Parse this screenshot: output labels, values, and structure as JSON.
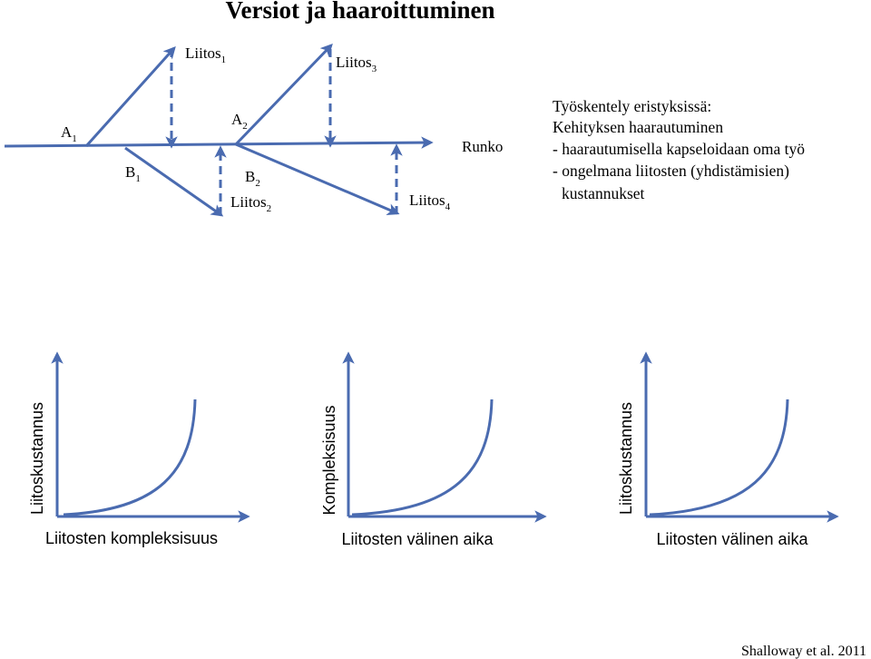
{
  "title": "Versiot ja haaroittuminen",
  "branch_diagram": {
    "a1": {
      "main": "A",
      "sub": "1"
    },
    "a2": {
      "main": "A",
      "sub": "2"
    },
    "b1": {
      "main": "B",
      "sub": "1"
    },
    "b2": {
      "main": "B",
      "sub": "2"
    },
    "liitos1": {
      "main": "Liitos",
      "sub": "1"
    },
    "liitos2": {
      "main": "Liitos",
      "sub": "2"
    },
    "liitos3": {
      "main": "Liitos",
      "sub": "3"
    },
    "liitos4": {
      "main": "Liitos",
      "sub": "4"
    },
    "runko": "Runko"
  },
  "notes": {
    "line1": "Työskentely eristyksissä:",
    "line2": "Kehityksen haarautuminen",
    "line3": "- haarautumisella kapseloidaan oma työ",
    "line4": "- ongelmana liitosten (yhdistämisien)",
    "line5": "kustannukset"
  },
  "charts": [
    {
      "ylabel": "Liitoskustannus",
      "xlabel": "Liitosten kompleksisuus"
    },
    {
      "ylabel": "Kompleksisuus",
      "xlabel": "Liitosten välinen aika"
    },
    {
      "ylabel": "Liitoskustannus",
      "xlabel": "Liitosten välinen aika"
    }
  ],
  "citation": "Shalloway et al. 2011",
  "colors": {
    "line": "#4a6bb0"
  }
}
